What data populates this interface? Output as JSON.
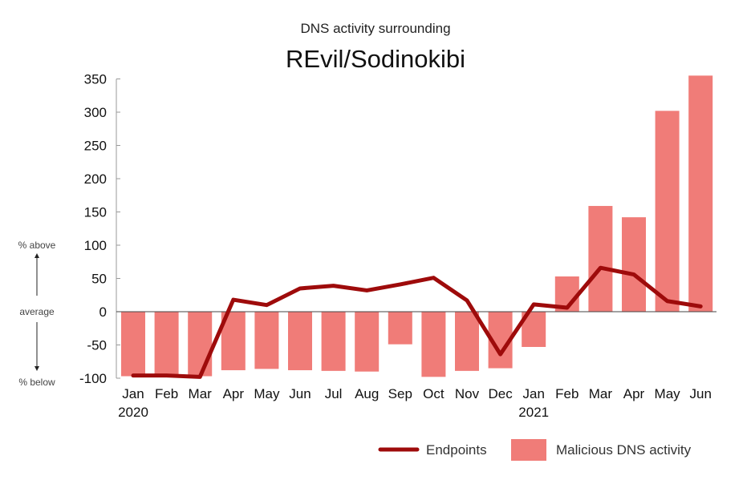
{
  "chart_data": {
    "type": "bar+line",
    "subtitle": "DNS activity surrounding",
    "title": "REvil/Sodinokibi",
    "categories": [
      "Jan",
      "Feb",
      "Mar",
      "Apr",
      "May",
      "Jun",
      "Jul",
      "Aug",
      "Sep",
      "Oct",
      "Nov",
      "Dec",
      "Jan",
      "Feb",
      "Mar",
      "Apr",
      "May",
      "Jun"
    ],
    "year_labels": [
      {
        "index": 0,
        "label": "2020"
      },
      {
        "index": 12,
        "label": "2021"
      }
    ],
    "ylim": [
      -100,
      350
    ],
    "yticks": [
      -100,
      -50,
      0,
      50,
      100,
      150,
      200,
      250,
      300,
      350
    ],
    "side_labels": {
      "above": "% above",
      "average": "average",
      "below": "% below"
    },
    "series": [
      {
        "name": "Malicious DNS activity",
        "kind": "bar",
        "color": "#F07C78",
        "values": [
          -97,
          -97,
          -97,
          -88,
          -86,
          -88,
          -89,
          -90,
          -49,
          -98,
          -89,
          -85,
          -53,
          53,
          159,
          142,
          302,
          355
        ]
      },
      {
        "name": "Endpoints",
        "kind": "line",
        "color": "#9E0B0B",
        "values": [
          -96,
          -96,
          -98,
          18,
          10,
          35,
          39,
          32,
          41,
          51,
          17,
          -64,
          11,
          6,
          66,
          56,
          16,
          8
        ]
      }
    ],
    "legend_position": "bottom-right"
  }
}
